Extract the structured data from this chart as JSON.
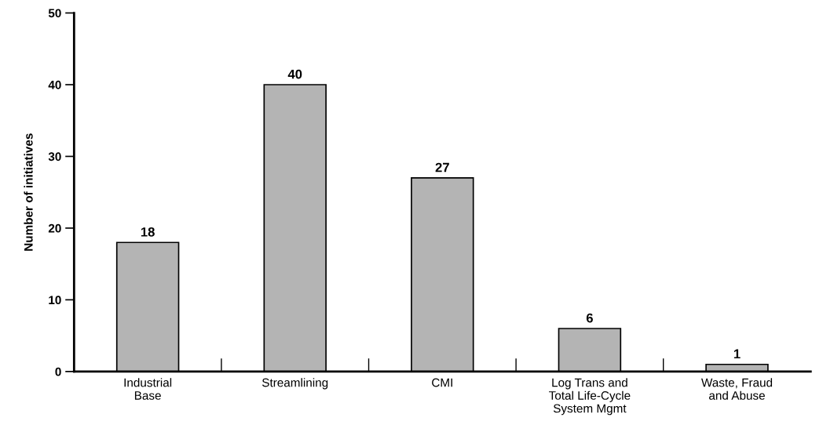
{
  "chart_data": {
    "type": "bar",
    "ylabel": "Number of initiatives",
    "categories": [
      "Industrial\nBase",
      "Streamlining",
      "CMI",
      "Log Trans and\nTotal Life-Cycle\nSystem Mgmt",
      "Waste, Fraud\nand Abuse"
    ],
    "values": [
      18,
      40,
      27,
      6,
      1
    ],
    "color": "#b4b4b4",
    "ylim": [
      0,
      50
    ],
    "yticks": [
      0,
      10,
      20,
      30,
      40,
      50
    ],
    "data_labels": true,
    "grid": false,
    "legend": false
  }
}
